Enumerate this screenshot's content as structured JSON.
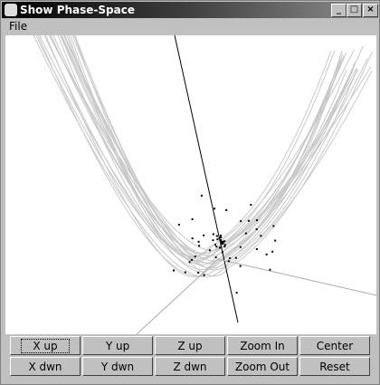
{
  "window": {
    "title": "Show Phase-Space"
  },
  "menu": [
    "File"
  ],
  "buttons": [
    [
      "X up",
      "Y up",
      "Z up",
      "Zoom In",
      "Center"
    ],
    [
      "X dwn",
      "Y dwn",
      "Z dwn",
      "Zoom Out",
      "Reset"
    ]
  ]
}
